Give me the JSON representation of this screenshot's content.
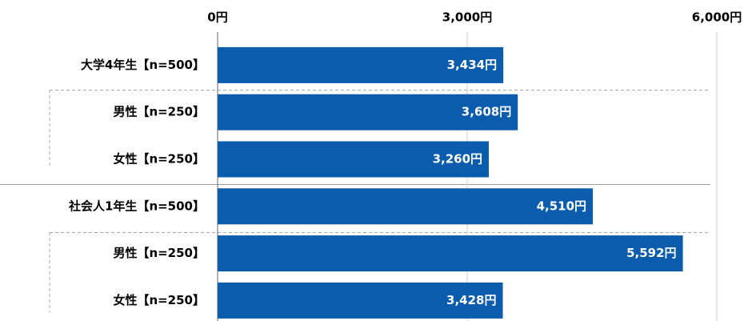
{
  "chart_data": {
    "type": "bar",
    "orientation": "horizontal",
    "categories": [
      "大学4年生【n=500】",
      "男性【n=250】",
      "女性【n=250】",
      "社会人1年生【n=500】",
      "男性【n=250】",
      "女性【n=250】"
    ],
    "values": [
      3434,
      3608,
      3260,
      4510,
      5592,
      3428
    ],
    "value_labels": [
      "3,434円",
      "3,608円",
      "3,260円",
      "4,510円",
      "5,592円",
      "3,428円"
    ],
    "color": "#0b5cad",
    "xlim": [
      0,
      6000
    ],
    "xticks": [
      {
        "value": 0,
        "label": "0円"
      },
      {
        "value": 3000,
        "label": "3,000円"
      },
      {
        "value": 6000,
        "label": "6,000円"
      }
    ],
    "grid": true
  }
}
